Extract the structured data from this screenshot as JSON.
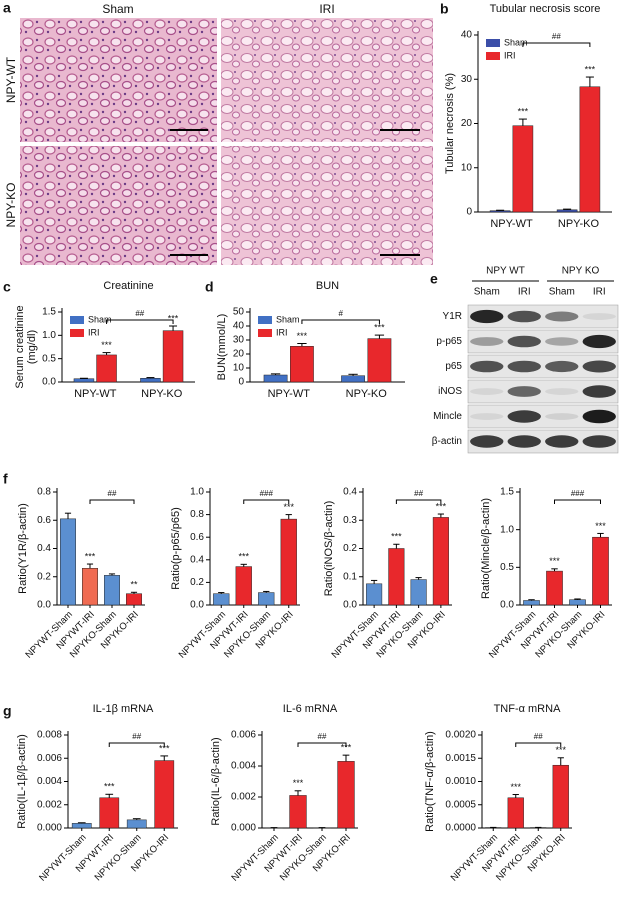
{
  "histology": {
    "panel": "a",
    "columns": [
      "Sham",
      "IRI"
    ],
    "rows": [
      "NPY-WT",
      "NPY-KO"
    ]
  },
  "blot": {
    "panel": "e",
    "groups": [
      "NPY WT",
      "NPY KO"
    ],
    "lanes": [
      "Sham",
      "IRI",
      "Sham",
      "IRI"
    ],
    "rows": [
      "Y1R",
      "p-p65",
      "p65",
      "iNOS",
      "Mincle",
      "β-actin"
    ]
  },
  "chart_data": [
    {
      "type": "bar",
      "panel": "b",
      "title": "Tubular necrosis score",
      "ylabel": "Tubular necrosis (%)",
      "categories": [
        "NPY-WT",
        "NPY-KO"
      ],
      "series": [
        {
          "name": "Sham",
          "color": "#3b4ea8",
          "values": [
            0.3,
            0.5
          ],
          "errors": [
            0.1,
            0.15
          ],
          "significance": [
            null,
            null
          ]
        },
        {
          "name": "IRI",
          "color": "#e8282c",
          "values": [
            19.5,
            28.3
          ],
          "errors": [
            1.5,
            2.2
          ],
          "significance": [
            "***",
            "***"
          ]
        }
      ],
      "bracket_label": "##",
      "ylim": [
        0,
        40
      ],
      "yticks": [
        0,
        10,
        20,
        30,
        40
      ],
      "legend": "upper-left"
    },
    {
      "type": "bar",
      "panel": "c",
      "title": "Creatinine",
      "ylabel": [
        "Serum creatinine",
        "(mg/dl)"
      ],
      "categories": [
        "NPY-WT",
        "NPY-KO"
      ],
      "series": [
        {
          "name": "Sham",
          "color": "#4170c4",
          "values": [
            0.07,
            0.08
          ],
          "errors": [
            0.01,
            0.015
          ],
          "significance": [
            null,
            null
          ]
        },
        {
          "name": "IRI",
          "color": "#e8282c",
          "values": [
            0.58,
            1.1
          ],
          "errors": [
            0.05,
            0.1
          ],
          "significance": [
            "***",
            "***"
          ]
        }
      ],
      "bracket_label": "##",
      "ylim": [
        0,
        1.5
      ],
      "yticks": [
        {
          "value": 0,
          "label": "0.0"
        },
        0.5,
        {
          "value": 1,
          "label": "1.0"
        },
        1.5
      ],
      "legend": "upper-left"
    },
    {
      "type": "bar",
      "panel": "d",
      "title": "BUN",
      "ylabel": "BUN(mmol/L)",
      "categories": [
        "NPY-WT",
        "NPY-KO"
      ],
      "series": [
        {
          "name": "Sham",
          "color": "#4170c4",
          "values": [
            5,
            4.5
          ],
          "errors": [
            0.8,
            1
          ],
          "significance": [
            null,
            null
          ]
        },
        {
          "name": "IRI",
          "color": "#e8282c",
          "values": [
            25.5,
            31
          ],
          "errors": [
            2,
            2.5
          ],
          "significance": [
            "***",
            "***"
          ]
        }
      ],
      "bracket_label": "#",
      "ylim": [
        0,
        50
      ],
      "yticks": [
        0,
        10,
        20,
        30,
        40,
        50
      ],
      "legend": "upper-left"
    },
    {
      "type": "bar",
      "panel": "f",
      "ylabel": "Ratio(Y1R/β-actin)",
      "categories": [
        "NPYWT-Sham",
        "NPYWT-IRI",
        "NPYKO-Sham",
        "NPYKO-IRI"
      ],
      "values": [
        0.61,
        0.26,
        0.21,
        0.08
      ],
      "errors": [
        0.04,
        0.03,
        0.01,
        0.01
      ],
      "colors": [
        "#5b8fd0",
        "#f06b52",
        "#5b8fd0",
        "#e8282c"
      ],
      "significance": [
        null,
        "***",
        null,
        "**"
      ],
      "bracket_label": "##",
      "ylim": [
        0,
        0.8
      ],
      "yticks": [
        {
          "value": 0,
          "label": "0.0"
        },
        0.2,
        0.4,
        0.6,
        0.8
      ]
    },
    {
      "type": "bar",
      "ylabel": "Ratio(p-p65/p65)",
      "categories": [
        "NPYWT-Sham",
        "NPYWT-IRI",
        "NPYKO-Sham",
        "NPYKO-IRI"
      ],
      "values": [
        0.1,
        0.34,
        0.11,
        0.76
      ],
      "errors": [
        0.01,
        0.02,
        0.01,
        0.04
      ],
      "colors": [
        "#5b8fd0",
        "#e8282c",
        "#5b8fd0",
        "#e8282c"
      ],
      "significance": [
        null,
        "***",
        null,
        "***"
      ],
      "bracket_label": "###",
      "ylim": [
        0,
        1
      ],
      "yticks": [
        {
          "value": 0,
          "label": "0.0"
        },
        0.2,
        0.4,
        0.6,
        0.8,
        {
          "value": 1,
          "label": "1.0"
        }
      ]
    },
    {
      "type": "bar",
      "ylabel": "Ratio(iNOS/β-actin)",
      "categories": [
        "NPYWT-Sham",
        "NPYWT-IRI",
        "NPYKO-Sham",
        "NPYKO-IRI"
      ],
      "values": [
        0.075,
        0.2,
        0.09,
        0.31
      ],
      "errors": [
        0.012,
        0.015,
        0.007,
        0.012
      ],
      "colors": [
        "#5b8fd0",
        "#e8282c",
        "#5b8fd0",
        "#e8282c"
      ],
      "significance": [
        null,
        "***",
        null,
        "***"
      ],
      "bracket_label": "##",
      "ylim": [
        0,
        0.4
      ],
      "yticks": [
        {
          "value": 0,
          "label": "0.0"
        },
        0.1,
        0.2,
        0.3,
        0.4
      ]
    },
    {
      "type": "bar",
      "ylabel": "Ratio(Mincle/β-actin)",
      "categories": [
        "NPYWT-Sham",
        "NPYWT-IRI",
        "NPYKO-Sham",
        "NPYKO-IRI"
      ],
      "values": [
        0.06,
        0.45,
        0.07,
        0.9
      ],
      "errors": [
        0.01,
        0.03,
        0.01,
        0.05
      ],
      "colors": [
        "#5b8fd0",
        "#e8282c",
        "#5b8fd0",
        "#e8282c"
      ],
      "significance": [
        null,
        "***",
        null,
        "***"
      ],
      "bracket_label": "###",
      "ylim": [
        0,
        1.5
      ],
      "yticks": [
        {
          "value": 0,
          "label": "0.0"
        },
        0.5,
        {
          "value": 1,
          "label": "1.0"
        },
        1.5
      ]
    },
    {
      "type": "bar",
      "panel": "g",
      "title": "IL-1β mRNA",
      "ylabel": "Ratio(IL-1β/β-actin)",
      "categories": [
        "NPYWT-Sham",
        "NPYWT-IRI",
        "NPYKO-Sham",
        "NPYKO-IRI"
      ],
      "values": [
        0.0004,
        0.0026,
        0.0007,
        0.0058
      ],
      "errors": [
        5e-05,
        0.0003,
        0.0001,
        0.0004
      ],
      "colors": [
        "#5b8fd0",
        "#e8282c",
        "#5b8fd0",
        "#e8282c"
      ],
      "significance": [
        null,
        "***",
        null,
        "***"
      ],
      "bracket_label": "##",
      "ylim": [
        0,
        0.008
      ],
      "yticks": [
        {
          "value": 0,
          "label": "0.000"
        },
        {
          "value": 0.002,
          "label": "0.002"
        },
        {
          "value": 0.004,
          "label": "0.004"
        },
        {
          "value": 0.006,
          "label": "0.006"
        },
        {
          "value": 0.008,
          "label": "0.008"
        }
      ]
    },
    {
      "type": "bar",
      "title": "IL-6 mRNA",
      "ylabel": "Ratio(IL-6/β-actin)",
      "categories": [
        "NPYWT-Sham",
        "NPYWT-IRI",
        "NPYKO-Sham",
        "NPYKO-IRI"
      ],
      "values": [
        2e-05,
        0.0021,
        2e-05,
        0.0043
      ],
      "errors": [
        5e-06,
        0.0003,
        5e-06,
        0.0004
      ],
      "colors": [
        "#5b8fd0",
        "#e8282c",
        "#5b8fd0",
        "#e8282c"
      ],
      "significance": [
        null,
        "***",
        null,
        "***"
      ],
      "bracket_label": "##",
      "ylim": [
        0,
        0.006
      ],
      "yticks": [
        {
          "value": 0,
          "label": "0.000"
        },
        {
          "value": 0.002,
          "label": "0.002"
        },
        {
          "value": 0.004,
          "label": "0.004"
        },
        {
          "value": 0.006,
          "label": "0.006"
        }
      ]
    },
    {
      "type": "bar",
      "title": "TNF-α mRNA",
      "ylabel": "Ratio(TNF-α/β-actin)",
      "categories": [
        "NPYWT-Sham",
        "NPYWT-IRI",
        "NPYKO-Sham",
        "NPYKO-IRI"
      ],
      "values": [
        1e-05,
        0.00065,
        1e-05,
        0.00135
      ],
      "errors": [
        3e-06,
        7e-05,
        3e-06,
        0.00016
      ],
      "colors": [
        "#5b8fd0",
        "#e8282c",
        "#5b8fd0",
        "#e8282c"
      ],
      "significance": [
        null,
        "***",
        null,
        "***"
      ],
      "bracket_label": "##",
      "ylim": [
        0,
        0.002
      ],
      "yticks": [
        {
          "value": 0,
          "label": "0.0000"
        },
        {
          "value": 0.0005,
          "label": "0.0005"
        },
        {
          "value": 0.001,
          "label": "0.0010"
        },
        {
          "value": 0.0015,
          "label": "0.0015"
        },
        {
          "value": 0.002,
          "label": "0.0020"
        }
      ]
    }
  ]
}
